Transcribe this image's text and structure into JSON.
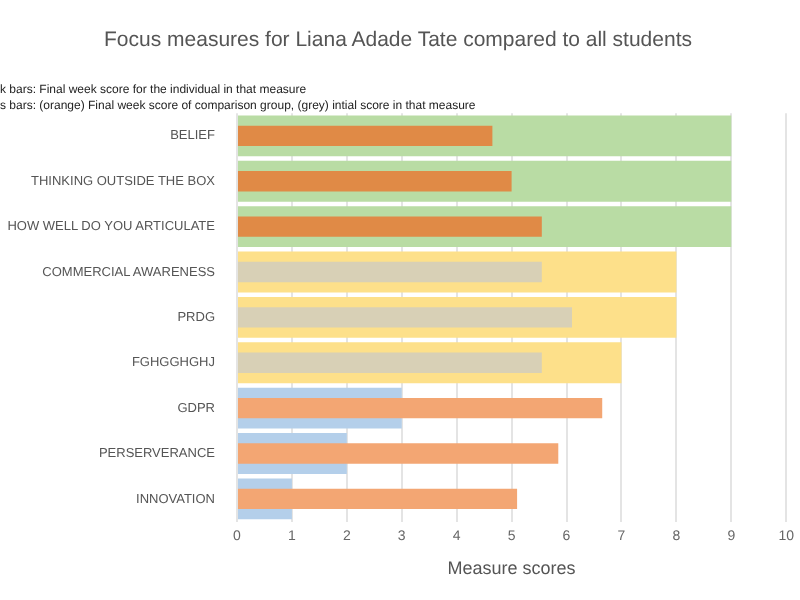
{
  "chart_data": {
    "type": "bar",
    "orientation": "horizontal",
    "title": "Focus measures for Liana Adade Tate compared to all students",
    "xlabel": "Measure scores",
    "categories": [
      "BELIEF",
      "THINKING OUTSIDE THE BOX",
      "HOW WELL DO YOU ARTICULATE",
      "COMMERCIAL AWARENESS",
      "PRDG",
      "FGHGGHGHJ",
      "GDPR",
      "PERSERVERANCE",
      "INNOVATION"
    ],
    "series": [
      {
        "colors": [
          "#b9dca4",
          "#b9dca4",
          "#b9dca4",
          "#fde08a",
          "#fde08a",
          "#fde08a",
          "#b4cfea",
          "#b4cfea",
          "#b4cfea"
        ],
        "values": [
          9,
          9,
          9,
          8,
          8,
          7,
          3,
          2,
          1
        ]
      },
      {
        "colors": [
          "#e08a46",
          "#e08a46",
          "#e08a46",
          "#d8d0b6",
          "#d8d0b6",
          "#d8d0b6",
          "#f3a673",
          "#f3a673",
          "#f3a673"
        ],
        "values": [
          4.65,
          5.0,
          5.55,
          5.55,
          6.1,
          5.55,
          6.65,
          5.85,
          5.1
        ]
      }
    ],
    "xlim": [
      0,
      10
    ],
    "xticks": [
      0,
      1,
      2,
      3,
      4,
      5,
      6,
      7,
      8,
      9,
      10
    ],
    "grid": "x",
    "legend": false,
    "annotations": [
      "k bars: Final week score for the individual in that measure",
      "s bars: (orange) Final week score of comparison group, (grey) intial score in that measure"
    ]
  }
}
